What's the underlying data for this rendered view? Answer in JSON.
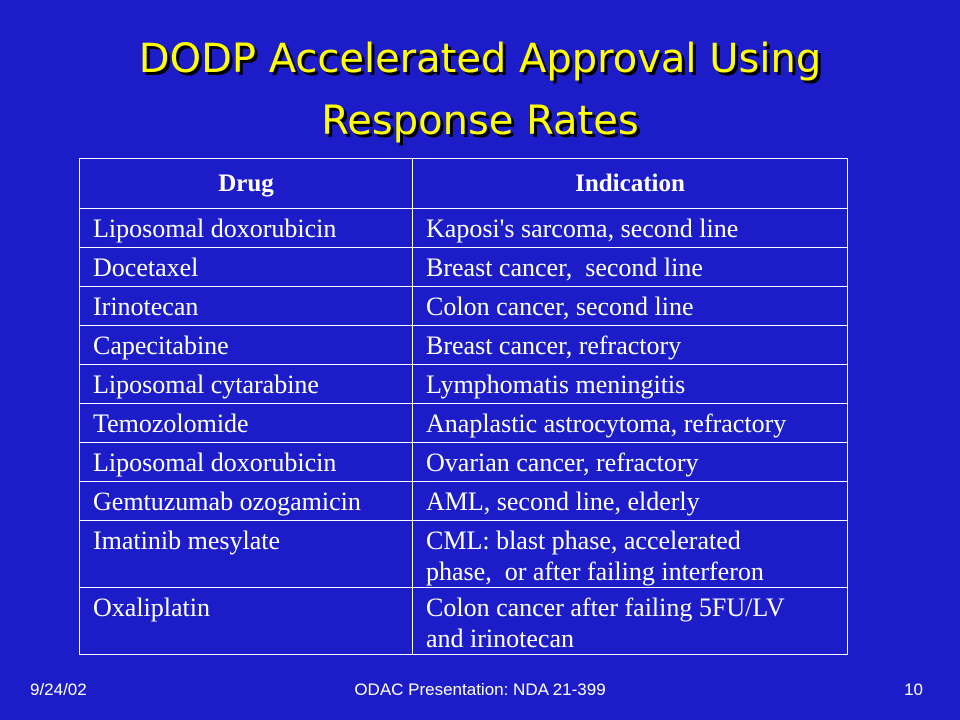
{
  "slide": {
    "title_line1": "DODP Accelerated Approval Using",
    "title_line2": "Response Rates"
  },
  "table": {
    "headers": [
      "Drug",
      "Indication"
    ],
    "rows": [
      [
        "Liposomal doxorubicin",
        "Kaposi's sarcoma, second line"
      ],
      [
        "Docetaxel",
        "Breast cancer,  second line"
      ],
      [
        "Irinotecan",
        "Colon cancer, second line"
      ],
      [
        "Capecitabine",
        "Breast cancer, refractory"
      ],
      [
        "Liposomal cytarabine",
        "Lymphomatis meningitis"
      ],
      [
        "Temozolomide",
        "Anaplastic astrocytoma, refractory"
      ],
      [
        "Liposomal doxorubicin",
        "Ovarian cancer, refractory"
      ],
      [
        "Gemtuzumab ozogamicin",
        "AML, second line, elderly"
      ],
      [
        "Imatinib mesylate",
        "CML: blast phase, accelerated\nphase,  or after failing interferon"
      ],
      [
        "Oxaliplatin",
        "Colon cancer after failing 5FU/LV\nand irinotecan"
      ]
    ]
  },
  "footer": {
    "date": "9/24/02",
    "center": "ODAC Presentation: NDA 21-399",
    "page": "10"
  },
  "colors": {
    "background": "#1c1cc8",
    "title": "#ffff00",
    "text": "#ffffff"
  }
}
